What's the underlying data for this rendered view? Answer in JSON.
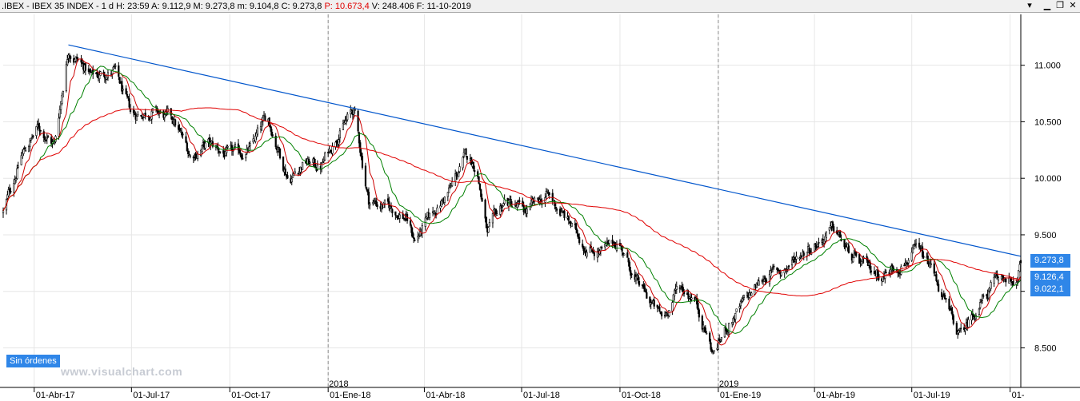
{
  "header": {
    "symbol": ".IBEX - IBEX 35 INDEX - ",
    "timeframe": " 1 d ",
    "hour": "H: 23:59 ",
    "open": " A: 9.112,9 ",
    "high": " M: 9.273,8 ",
    "low": " m: 9.104,8 ",
    "close": " C: 9.273,8 ",
    "prev": " P: 10.673,4 ",
    "volume": " V: 248.406 ",
    "date": " F: 11-10-2019"
  },
  "status_label": "Sin órdenes",
  "watermark": "www.visualchart.com",
  "price_tags": {
    "last": "9.273,8",
    "mid": "9.126,4",
    "low": "9.022,1"
  },
  "colors": {
    "candle": "#000000",
    "ma_fast": "#cc0000",
    "ma_mid": "#008000",
    "ma_slow": "#e00000",
    "trendline": "#0055cc",
    "tag": "#2f86e8"
  },
  "chart_data": {
    "type": "candlestick",
    "title": ".IBEX - IBEX 35 INDEX - 1 d",
    "y_range": [
      8150,
      11450
    ],
    "y_ticks": [
      8500,
      9000,
      9500,
      10000,
      10500,
      11000
    ],
    "y_tick_labels": [
      "8.500",
      "9.000",
      "9.500",
      "10.000",
      "10.500",
      "11.000"
    ],
    "x_range": [
      "2017-03-03",
      "2019-10-11"
    ],
    "x_ticks": [
      "2017-04-01",
      "2017-07-01",
      "2017-10-01",
      "2018-01-01",
      "2018-04-01",
      "2018-07-01",
      "2018-10-01",
      "2019-01-01",
      "2019-04-01",
      "2019-07-01",
      "2019-10-01"
    ],
    "x_tick_labels": [
      "01-Abr-17",
      "01-Jul-17",
      "01-Oct-17",
      "01-Ene-18",
      "01-Abr-18",
      "01-Jul-18",
      "01-Oct-18",
      "01-Ene-19",
      "01-Abr-19",
      "01-Jul-19",
      "01-"
    ],
    "year_markers": [
      {
        "date": "2018-01-01",
        "label": "2018"
      },
      {
        "date": "2019-01-01",
        "label": "2019"
      }
    ],
    "price_path": [
      [
        "2017-03-03",
        9700
      ],
      [
        "2017-03-20",
        10200
      ],
      [
        "2017-04-05",
        10450
      ],
      [
        "2017-04-20",
        10300
      ],
      [
        "2017-05-03",
        11150
      ],
      [
        "2017-05-25",
        10900
      ],
      [
        "2017-06-15",
        10950
      ],
      [
        "2017-07-01",
        10550
      ],
      [
        "2017-07-20",
        10600
      ],
      [
        "2017-08-10",
        10500
      ],
      [
        "2017-08-25",
        10200
      ],
      [
        "2017-09-10",
        10300
      ],
      [
        "2017-10-01",
        10200
      ],
      [
        "2017-10-20",
        10250
      ],
      [
        "2017-11-05",
        10550
      ],
      [
        "2017-11-25",
        10000
      ],
      [
        "2017-12-10",
        10150
      ],
      [
        "2017-12-25",
        10100
      ],
      [
        "2018-01-10",
        10400
      ],
      [
        "2018-01-25",
        10600
      ],
      [
        "2018-02-08",
        9800
      ],
      [
        "2018-02-25",
        9750
      ],
      [
        "2018-03-15",
        9650
      ],
      [
        "2018-03-23",
        9450
      ],
      [
        "2018-04-10",
        9700
      ],
      [
        "2018-04-25",
        9900
      ],
      [
        "2018-05-10",
        10200
      ],
      [
        "2018-05-20",
        10100
      ],
      [
        "2018-05-30",
        9500
      ],
      [
        "2018-06-15",
        9800
      ],
      [
        "2018-07-05",
        9700
      ],
      [
        "2018-07-25",
        9850
      ],
      [
        "2018-08-15",
        9600
      ],
      [
        "2018-08-30",
        9400
      ],
      [
        "2018-09-15",
        9350
      ],
      [
        "2018-09-30",
        9450
      ],
      [
        "2018-10-15",
        9100
      ],
      [
        "2018-10-30",
        8900
      ],
      [
        "2018-11-10",
        8750
      ],
      [
        "2018-11-25",
        9050
      ],
      [
        "2018-12-10",
        8950
      ],
      [
        "2018-12-27",
        8450
      ],
      [
        "2019-01-10",
        8700
      ],
      [
        "2019-01-25",
        8900
      ],
      [
        "2019-02-15",
        9150
      ],
      [
        "2019-03-05",
        9200
      ],
      [
        "2019-03-20",
        9350
      ],
      [
        "2019-04-05",
        9450
      ],
      [
        "2019-04-20",
        9550
      ],
      [
        "2019-05-05",
        9300
      ],
      [
        "2019-05-20",
        9200
      ],
      [
        "2019-06-05",
        9150
      ],
      [
        "2019-06-20",
        9250
      ],
      [
        "2019-07-05",
        9350
      ],
      [
        "2019-07-20",
        9200
      ],
      [
        "2019-08-05",
        8800
      ],
      [
        "2019-08-15",
        8600
      ],
      [
        "2019-08-30",
        8850
      ],
      [
        "2019-09-15",
        9050
      ],
      [
        "2019-09-30",
        9150
      ],
      [
        "2019-10-05",
        8950
      ],
      [
        "2019-10-11",
        9273.8
      ]
    ],
    "moving_averages": [
      {
        "key": "ma_fast",
        "window": 10
      },
      {
        "key": "ma_mid",
        "window": 25
      },
      {
        "key": "ma_slow",
        "window": 120
      }
    ],
    "trendline": [
      [
        "2017-05-03",
        11180
      ],
      [
        "2019-10-11",
        9310
      ]
    ],
    "last_close": 9273.8
  }
}
